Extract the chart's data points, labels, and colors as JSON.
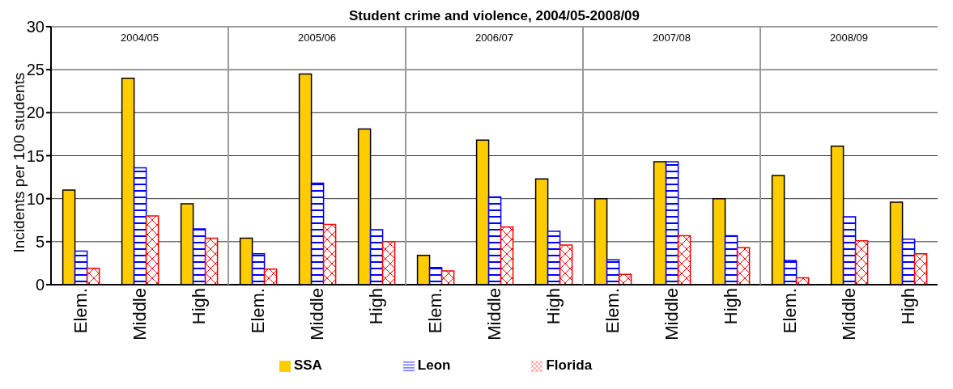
{
  "chart_data": {
    "type": "bar",
    "title": "Student crime and violence, 2004/05-2008/09",
    "ylabel": "Incidents per 100 students",
    "categories": [
      "Elem.",
      "Middle",
      "High",
      "Elem.",
      "Middle",
      "High",
      "Elem.",
      "Middle",
      "High",
      "Elem.",
      "Middle",
      "High",
      "Elem.",
      "Middle",
      "High"
    ],
    "series": [
      {
        "name": "SSA",
        "color": "#ffcc00",
        "values": [
          11.0,
          24.0,
          9.4,
          5.4,
          24.5,
          18.1,
          3.4,
          16.8,
          12.3,
          10.0,
          14.3,
          10.0,
          12.7,
          16.1,
          9.6
        ]
      },
      {
        "name": "Leon",
        "color": "#0000ff",
        "values": [
          3.9,
          13.6,
          6.5,
          3.6,
          11.8,
          6.4,
          2.0,
          10.2,
          6.2,
          2.9,
          14.3,
          5.7,
          2.8,
          7.9,
          5.3
        ]
      },
      {
        "name": "Florida",
        "color": "#ff0000",
        "values": [
          1.9,
          8.0,
          5.4,
          1.8,
          7.0,
          5.0,
          1.6,
          6.7,
          4.6,
          1.2,
          5.7,
          4.3,
          0.8,
          5.1,
          3.6
        ]
      }
    ],
    "annotations": [
      "2004/05",
      "2005/06",
      "2006/07",
      "2007/08",
      "2008/09"
    ],
    "ylim": [
      0,
      30
    ],
    "yticks": [
      0,
      5,
      10,
      15,
      20,
      25,
      30
    ],
    "grid": "y",
    "legend": "bottom"
  }
}
